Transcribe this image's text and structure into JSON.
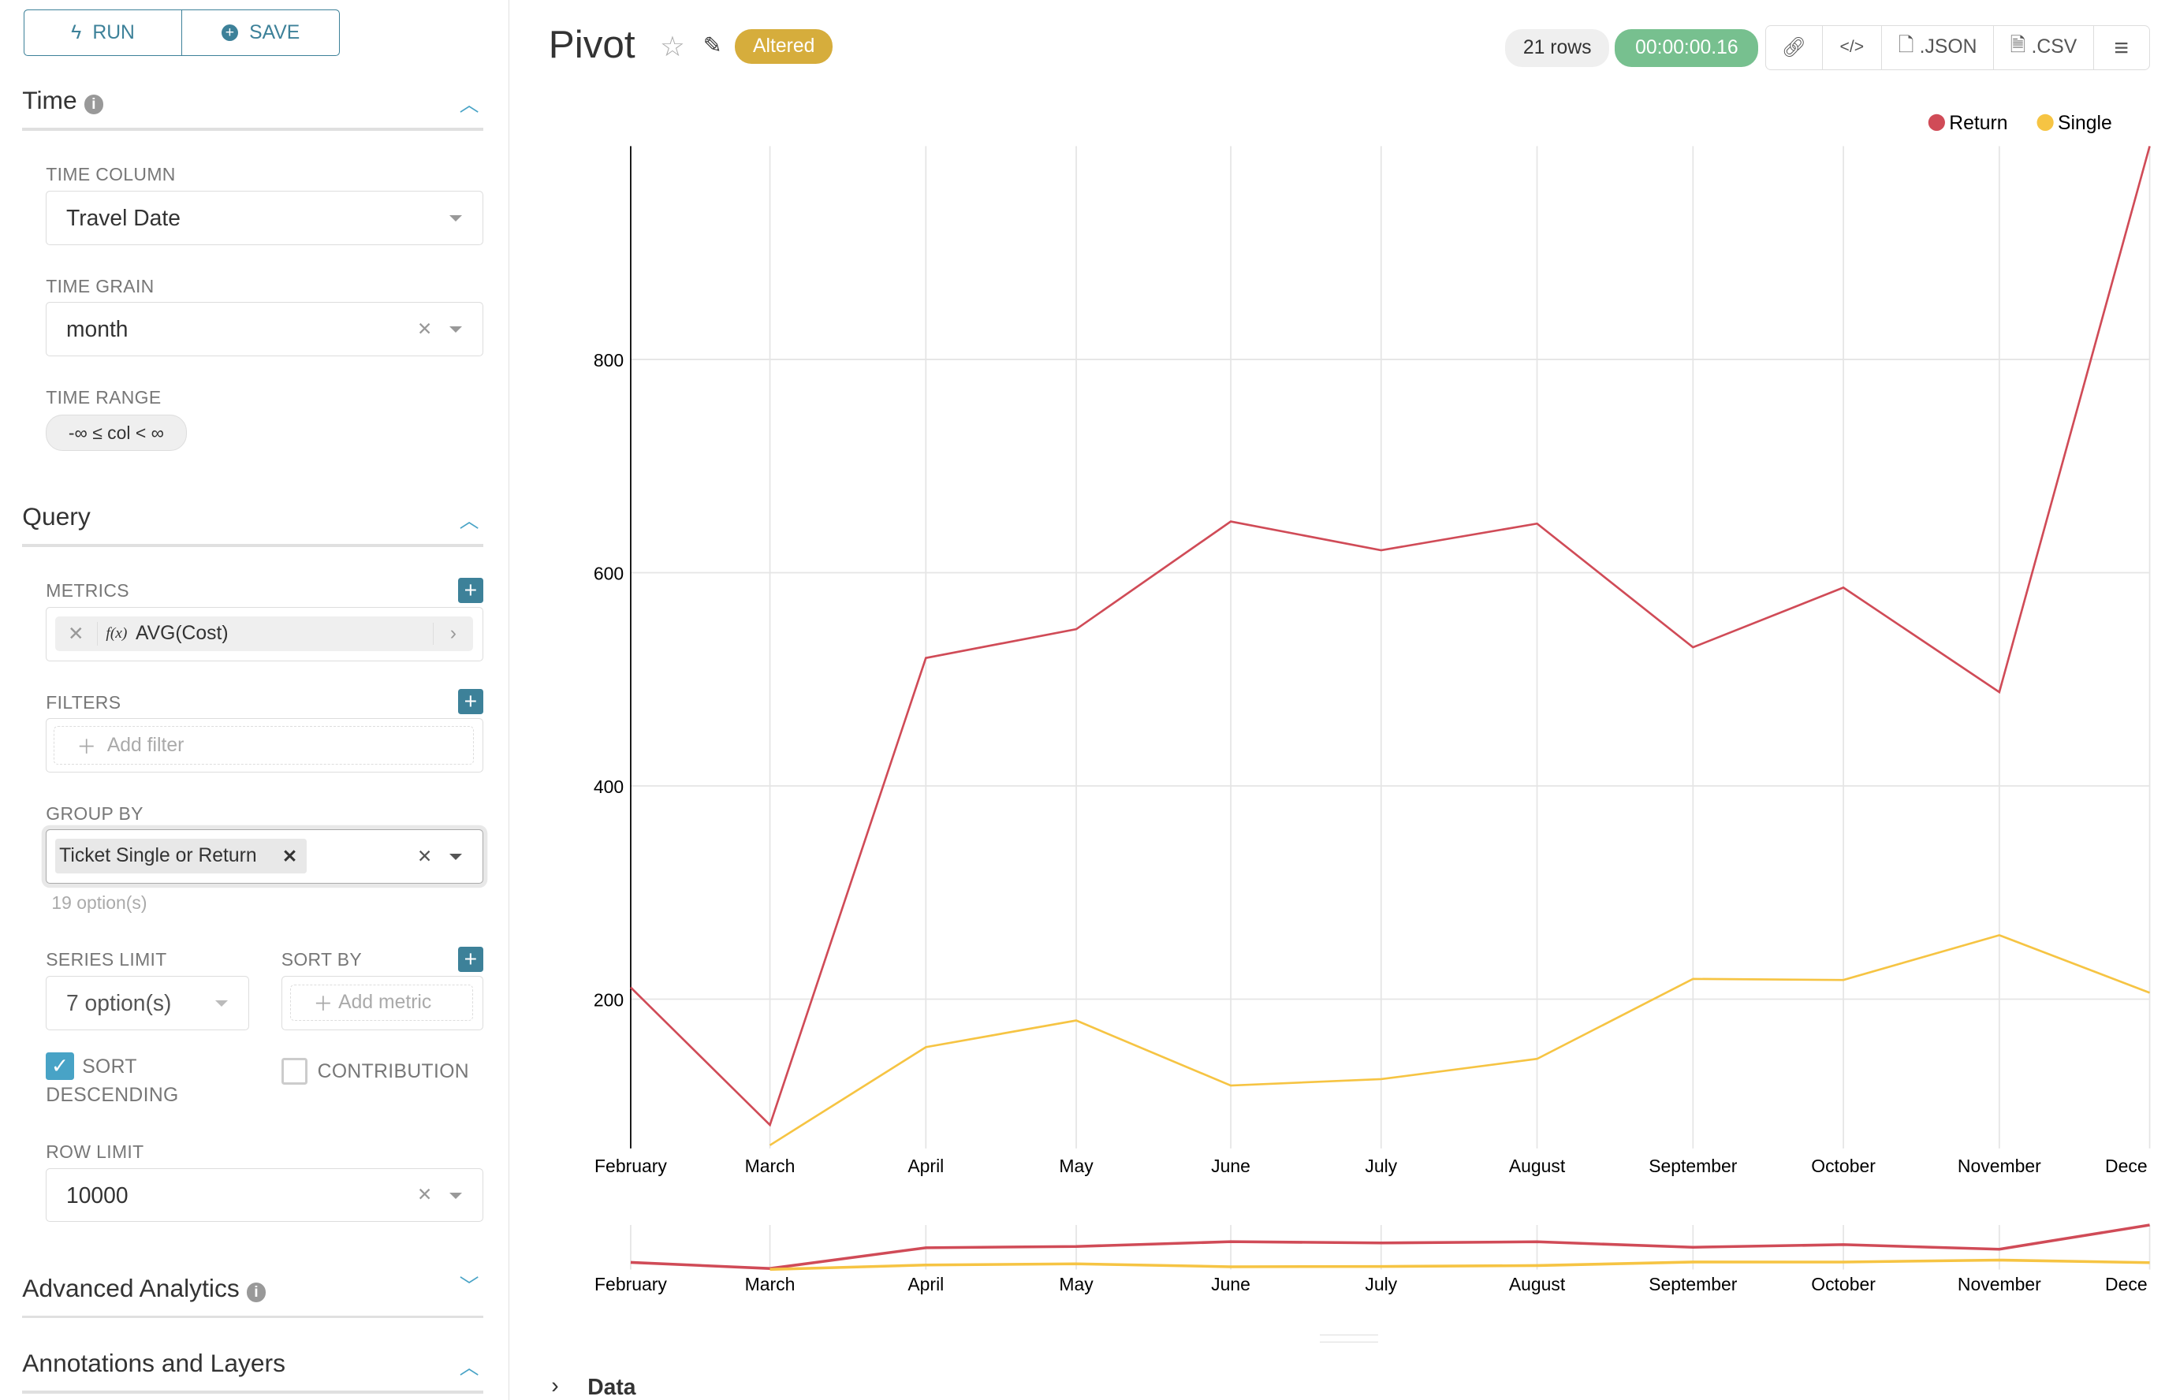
{
  "toolbar": {
    "run_label": "RUN",
    "save_label": "SAVE"
  },
  "time": {
    "title": "Time",
    "time_column_label": "TIME COLUMN",
    "time_column_value": "Travel Date",
    "time_grain_label": "TIME GRAIN",
    "time_grain_value": "month",
    "time_range_label": "TIME RANGE",
    "time_range_value": "-∞ ≤ col < ∞"
  },
  "query": {
    "title": "Query",
    "metrics_label": "METRICS",
    "metric_fx": "f(x)",
    "metric_value": "AVG(Cost)",
    "filters_label": "FILTERS",
    "add_filter": "Add filter",
    "group_by_label": "GROUP BY",
    "group_by_tag": "Ticket Single or Return",
    "group_by_hint": "19 option(s)",
    "series_limit_label": "SERIES LIMIT",
    "series_limit_value": "7 option(s)",
    "sort_by_label": "SORT BY",
    "add_metric": "Add metric",
    "sort_desc_label_1": "SORT",
    "sort_desc_label_2": "DESCENDING",
    "sort_desc_checked": true,
    "contribution_label": "CONTRIBUTION",
    "contribution_checked": false,
    "row_limit_label": "ROW LIMIT",
    "row_limit_value": "10000"
  },
  "sections": {
    "advanced": "Advanced Analytics",
    "annotations": "Annotations and Layers"
  },
  "header": {
    "title": "Pivot",
    "badge": "Altered",
    "rows": "21 rows",
    "timer": "00:00:00.16",
    "json": ".JSON",
    "csv": ".CSV"
  },
  "colors": {
    "accent": "#3d8199",
    "altered": "#d6ad3c",
    "timer": "#77c08f",
    "return": "#d04b57",
    "single": "#f6c443"
  },
  "data_section": {
    "label": "Data"
  },
  "chart_data": {
    "type": "line",
    "categories": [
      "February",
      "March",
      "April",
      "May",
      "June",
      "July",
      "August",
      "September",
      "October",
      "November",
      "Dece"
    ],
    "series": [
      {
        "name": "Return",
        "values": [
          211,
          82,
          520,
          547,
          648,
          621,
          646,
          530,
          586,
          488,
          1000
        ]
      },
      {
        "name": "Single",
        "values": [
          null,
          63,
          155,
          180,
          119,
          125,
          144,
          219,
          218,
          260,
          206
        ]
      }
    ],
    "yticks": [
      "200",
      "400",
      "600",
      "800"
    ],
    "ylim": [
      60,
      1000
    ],
    "grid": true,
    "legend": "top-right",
    "brush": true
  }
}
